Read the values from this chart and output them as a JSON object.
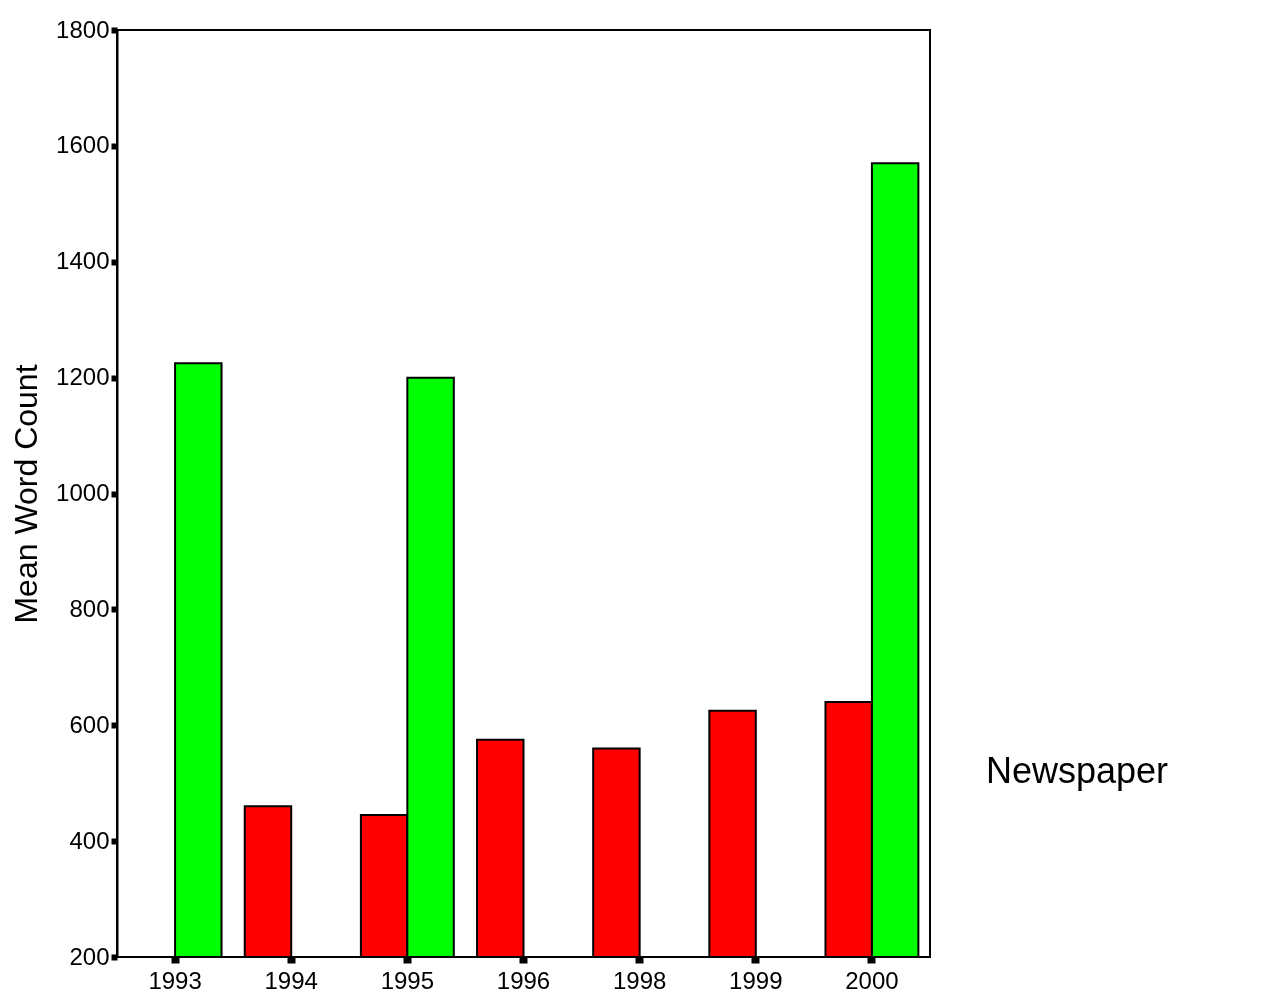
{
  "chart_data": {
    "type": "bar",
    "ylabel": "Mean Word Count",
    "categories": [
      "1993",
      "1994",
      "1995",
      "1996",
      "1998",
      "1999",
      "2000"
    ],
    "series": [
      {
        "color": "#ff0000",
        "values": [
          null,
          460,
          445,
          575,
          560,
          625,
          640
        ]
      },
      {
        "color": "#00ff00",
        "values": [
          1225,
          null,
          1200,
          null,
          null,
          null,
          1570
        ]
      }
    ],
    "ylim": [
      200,
      1800
    ],
    "yticks": [
      200,
      400,
      600,
      800,
      1000,
      1200,
      1400,
      1600,
      1800
    ],
    "grid": false,
    "annotations": [
      "Newspaper"
    ]
  }
}
